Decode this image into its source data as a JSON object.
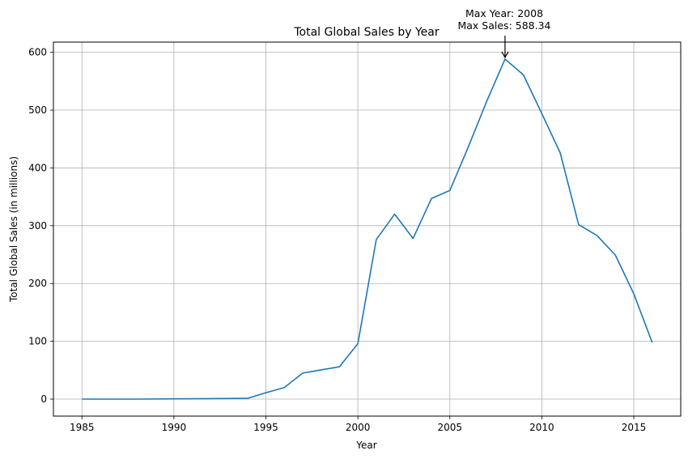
{
  "chart_data": {
    "type": "line",
    "title": "Total Global Sales by Year",
    "xlabel": "Year",
    "ylabel": "Total Global Sales (in millions)",
    "xlim": [
      1983.45,
      2017.55
    ],
    "ylim": [
      -29.4,
      617.7
    ],
    "xticks": [
      1985,
      1990,
      1995,
      2000,
      2005,
      2010,
      2015
    ],
    "yticks": [
      0,
      100,
      200,
      300,
      400,
      500,
      600
    ],
    "grid": true,
    "series": [
      {
        "color": "#1f77b4",
        "x": [
          1985,
          1988,
          1990,
          1994,
          1995,
          1996,
          1997,
          1998,
          1999,
          2000,
          2001,
          2002,
          2003,
          2004,
          2005,
          2006,
          2007,
          2008,
          2009,
          2010,
          2011,
          2012,
          2013,
          2014,
          2015,
          2016
        ],
        "y": [
          0.0,
          0.0,
          0.5,
          1.3,
          11.0,
          20.0,
          45.0,
          50.5,
          56.0,
          96.0,
          276.0,
          320.0,
          278.0,
          347.0,
          361.0,
          436.0,
          515.0,
          588.34,
          561.0,
          494.0,
          426.0,
          302.0,
          283.0,
          249.0,
          182.0,
          98.0
        ]
      }
    ],
    "annotation": {
      "line1": "Max Year: 2008",
      "line2": "Max Sales: 588.34",
      "x": 2008,
      "y": 588.34
    }
  }
}
